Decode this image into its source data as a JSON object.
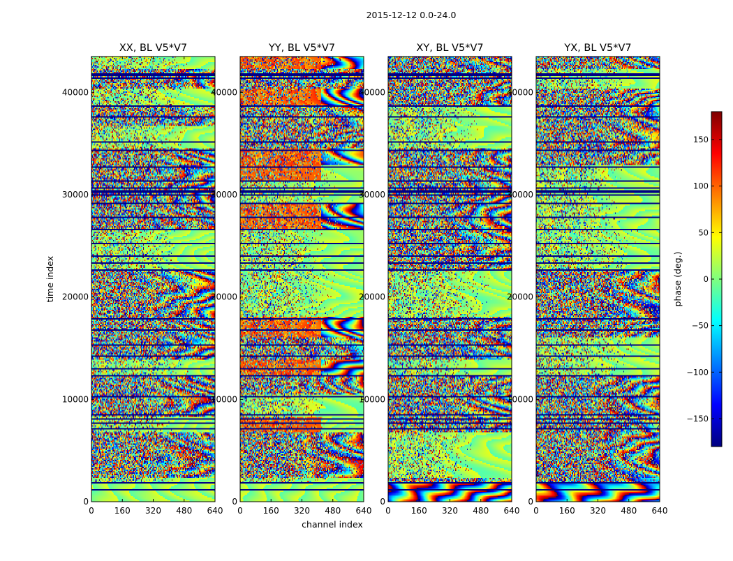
{
  "chart_data": {
    "type": "heatmap",
    "title": "2015-12-12 0.0-24.0",
    "xlabel": "channel index",
    "ylabel": "time index",
    "x_ticks": [
      0,
      160,
      320,
      480,
      640
    ],
    "y_ticks": [
      0,
      10000,
      20000,
      30000,
      40000
    ],
    "xlim": [
      0,
      640
    ],
    "ylim": [
      0,
      43500
    ],
    "colorbar": {
      "label": "phase (deg.)",
      "colormap": "jet",
      "vmin": -180,
      "vmax": 180,
      "ticks": [
        -150,
        -100,
        -50,
        0,
        50,
        100,
        150
      ],
      "tick_labels": [
        "−150",
        "−100",
        "−50",
        "0",
        "50",
        "100",
        "150"
      ],
      "stops": [
        "#00007f",
        "#0000ff",
        "#007fff",
        "#00ffff",
        "#7fff7f",
        "#ffff00",
        "#ff7f00",
        "#ff0000",
        "#7f0000"
      ]
    },
    "panels": [
      {
        "title": "XX, BL V5*V7",
        "seed": 11,
        "variant": "xx"
      },
      {
        "title": "YY, BL V5*V7",
        "seed": 23,
        "variant": "yy"
      },
      {
        "title": "XY, BL V5*V7",
        "seed": 37,
        "variant": "xy"
      },
      {
        "title": "YX, BL V5*V7",
        "seed": 53,
        "variant": "yx"
      }
    ],
    "data_gaps_time_index": [
      1200,
      1900,
      7200,
      7700,
      8200,
      8600,
      10300,
      12400,
      13100,
      14300,
      15400,
      16800,
      17900,
      22700,
      23400,
      24000,
      25300,
      26600,
      27900,
      29200,
      30100,
      30300,
      30500,
      30700,
      31400,
      32700,
      34400,
      35200,
      37600,
      38700,
      41400,
      41800
    ]
  }
}
